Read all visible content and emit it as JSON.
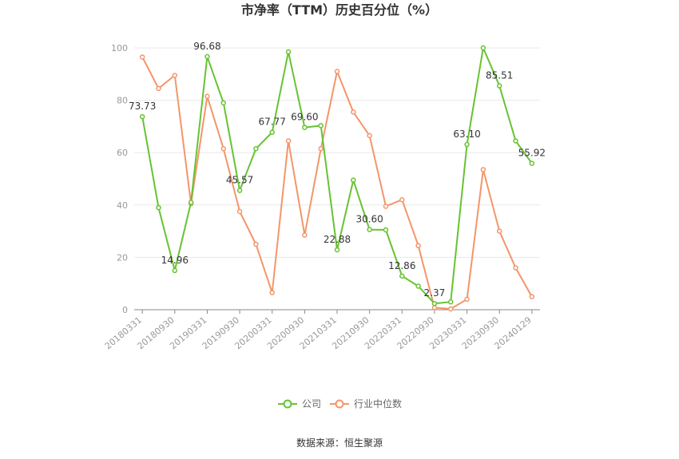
{
  "chart_data": {
    "type": "line",
    "title": "市净率（TTM）历史百分位（%）",
    "xlabel": "",
    "ylabel": "",
    "ylim": [
      0,
      100
    ],
    "yticks": [
      0,
      20,
      40,
      60,
      80,
      100
    ],
    "grid": true,
    "legend_position": "bottom",
    "x": [
      "20180331",
      "20180630",
      "20180930",
      "20181231",
      "20190331",
      "20190630",
      "20190930",
      "20191231",
      "20200331",
      "20200630",
      "20200930",
      "20201231",
      "20210331",
      "20210630",
      "20210930",
      "20211231",
      "20220331",
      "20220630",
      "20220930",
      "20221231",
      "20230331",
      "20230630",
      "20230930",
      "20231231",
      "20240129"
    ],
    "x_tick_labels": [
      "20180331",
      "20180930",
      "20190331",
      "20190930",
      "20200331",
      "20200930",
      "20210331",
      "20210930",
      "20220331",
      "20220930",
      "20230331",
      "20230930",
      "20240129"
    ],
    "series": [
      {
        "name": "公司",
        "color": "#66c332",
        "values": [
          73.73,
          39,
          14.96,
          41,
          96.68,
          79,
          45.57,
          61.5,
          67.77,
          98.5,
          69.6,
          70.3,
          22.88,
          49.5,
          30.6,
          30.5,
          12.86,
          9,
          2.37,
          3,
          63.1,
          100,
          85.51,
          64.5,
          55.92
        ],
        "labels": [
          "73.73",
          "",
          "14.96",
          "",
          "96.68",
          "",
          "45.57",
          "",
          "67.77",
          "",
          "69.60",
          "",
          "22.88",
          "",
          "30.60",
          "",
          "12.86",
          "",
          "2.37",
          "",
          "63.10",
          "",
          "85.51",
          "",
          "55.92"
        ]
      },
      {
        "name": "行业中位数",
        "color": "#f4956a",
        "values": [
          96.5,
          84.5,
          89.5,
          40.5,
          81.5,
          61.5,
          37.5,
          25,
          6.5,
          64.5,
          28.5,
          61.5,
          91,
          75.5,
          66.5,
          39.5,
          42,
          24.5,
          0.8,
          0.3,
          4,
          53.5,
          30,
          16,
          5
        ]
      }
    ],
    "source": "数据来源：恒生聚源"
  }
}
